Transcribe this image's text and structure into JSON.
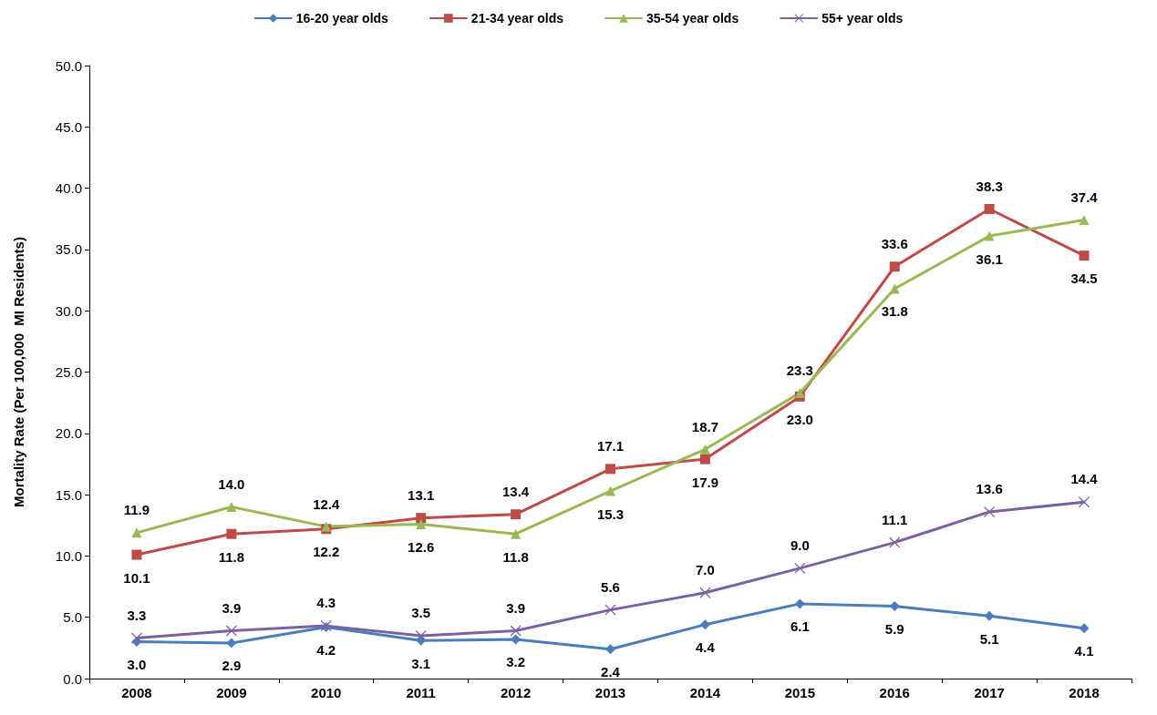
{
  "chart_data": {
    "type": "line",
    "ylabel": "Mortality Rate (Per 100,000  MI Residents)",
    "categories": [
      "2008",
      "2009",
      "2010",
      "2011",
      "2012",
      "2013",
      "2014",
      "2015",
      "2016",
      "2017",
      "2018"
    ],
    "series": [
      {
        "name": "16-20 year olds",
        "color": "#4a7ebb",
        "marker": "diamond",
        "values": [
          3.0,
          2.9,
          4.2,
          3.1,
          3.2,
          2.4,
          4.4,
          6.1,
          5.9,
          5.1,
          4.1
        ],
        "value_labels": [
          "3.0",
          "2.9",
          "4.2",
          "3.1",
          "3.2",
          "2.4",
          "4.4",
          "6.1",
          "5.9",
          "5.1",
          "4.1"
        ]
      },
      {
        "name": "21-34 year olds",
        "color": "#be4b48",
        "marker": "square",
        "values": [
          10.1,
          11.8,
          12.2,
          13.1,
          13.4,
          17.1,
          17.9,
          23.0,
          33.6,
          38.3,
          34.5
        ],
        "value_labels": [
          "10.1",
          "11.8",
          "12.2",
          "13.1",
          "13.4",
          "17.1",
          "17.9",
          "23.0",
          "33.6",
          "38.3",
          "34.5"
        ]
      },
      {
        "name": "35-54 year olds",
        "color": "#98b954",
        "marker": "triangle",
        "values": [
          11.9,
          14.0,
          12.4,
          12.6,
          11.8,
          15.3,
          18.7,
          23.3,
          31.8,
          36.1,
          37.4
        ],
        "value_labels": [
          "11.9",
          "14.0",
          "12.4",
          "12.6",
          "11.8",
          "15.3",
          "18.7",
          "23.3",
          "31.8",
          "36.1",
          "37.4"
        ]
      },
      {
        "name": "55+ year olds",
        "color": "#7d60a0",
        "marker": "cross",
        "values": [
          3.3,
          3.9,
          4.3,
          3.5,
          3.9,
          5.6,
          7.0,
          9.0,
          11.1,
          13.6,
          14.4
        ],
        "value_labels": [
          "3.3",
          "3.9",
          "4.3",
          "3.5",
          "3.9",
          "5.6",
          "7.0",
          "9.0",
          "11.1",
          "13.6",
          "14.4"
        ]
      }
    ],
    "ylim": [
      0,
      50
    ],
    "yticks": [
      {
        "value": 0,
        "label": "0.0"
      },
      {
        "value": 5,
        "label": "5.0"
      },
      {
        "value": 10,
        "label": "10.0"
      },
      {
        "value": 15,
        "label": "15.0"
      },
      {
        "value": 20,
        "label": "20.0"
      },
      {
        "value": 25,
        "label": "25.0"
      },
      {
        "value": 30,
        "label": "30.0"
      },
      {
        "value": 35,
        "label": "35.0"
      },
      {
        "value": 40,
        "label": "40.0"
      },
      {
        "value": 45,
        "label": "45.0"
      },
      {
        "value": 50,
        "label": "50.0"
      }
    ],
    "grid": false,
    "legend": "top",
    "line_style": "solid"
  }
}
